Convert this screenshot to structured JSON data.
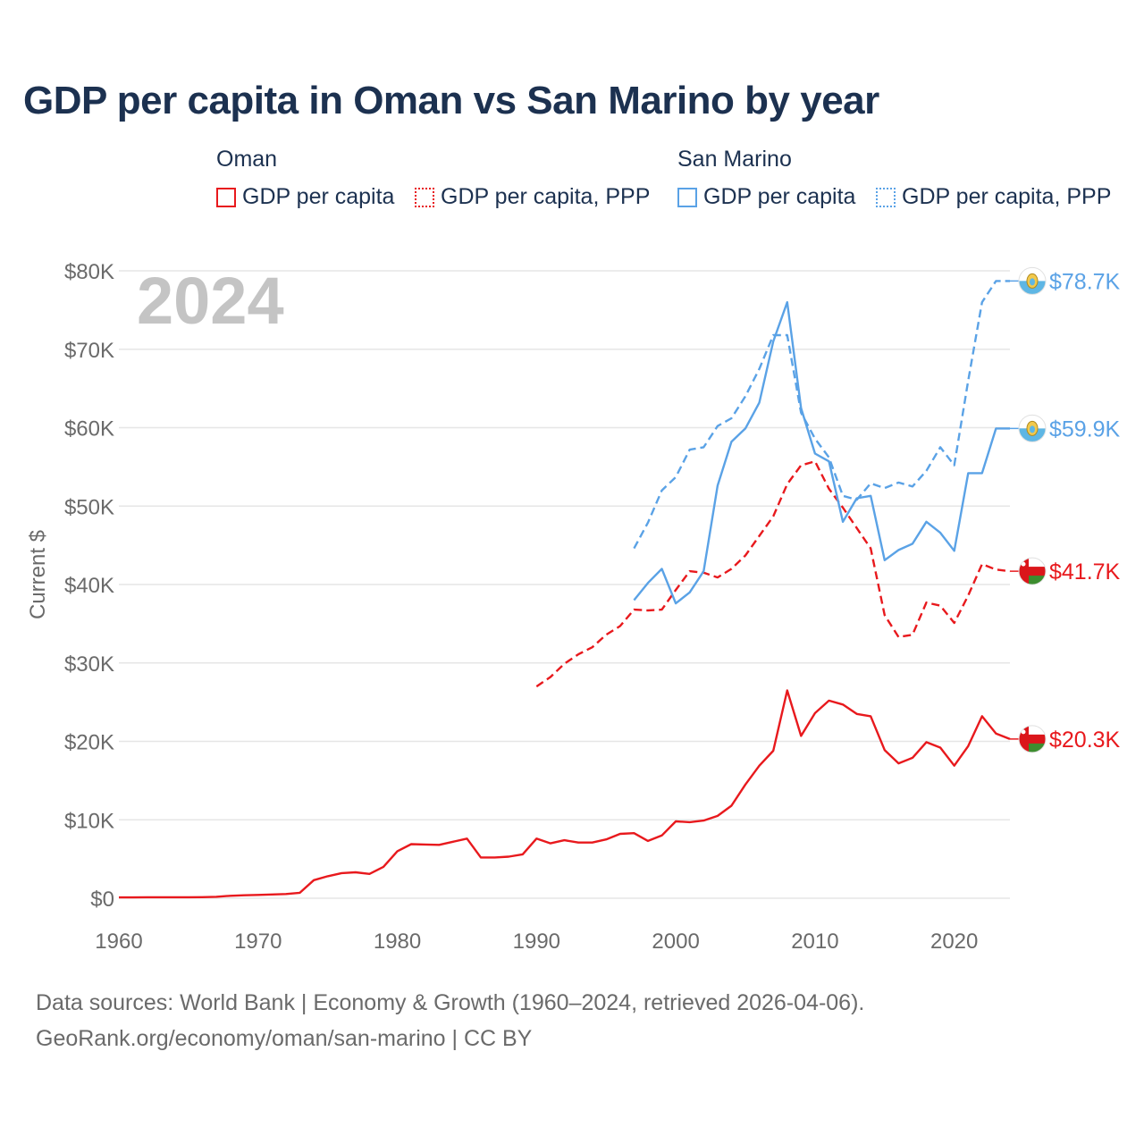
{
  "title": "GDP per capita in Oman vs San Marino by year",
  "legend": {
    "groups": [
      {
        "name": "Oman",
        "items": [
          {
            "label": "GDP per capita",
            "style": "solid",
            "color": "#e8191d"
          },
          {
            "label": "GDP per capita, PPP",
            "style": "dotted",
            "color": "#e8191d"
          }
        ]
      },
      {
        "name": "San Marino",
        "items": [
          {
            "label": "GDP per capita",
            "style": "solid",
            "color": "#5aa2e6"
          },
          {
            "label": "GDP per capita, PPP",
            "style": "dotted",
            "color": "#5aa2e6"
          }
        ]
      }
    ]
  },
  "year_watermark": "2024",
  "footer": {
    "line1": "Data sources: World Bank | Economy & Growth (1960–2024, retrieved 2026-04-06).",
    "line2": "GeoRank.org/economy/oman/san-marino | CC BY"
  },
  "chart_data": {
    "type": "line",
    "title": "GDP per capita in Oman vs San Marino by year",
    "ylabel": "Current $",
    "xlabel": "",
    "xlim": [
      1960,
      2024
    ],
    "ylim": [
      0,
      80000
    ],
    "x_ticks": [
      1960,
      1970,
      1980,
      1990,
      2000,
      2010,
      2020
    ],
    "x_tick_labels": [
      "1960",
      "1970",
      "1980",
      "1990",
      "2000",
      "2010",
      "2020"
    ],
    "y_ticks": [
      0,
      10000,
      20000,
      30000,
      40000,
      50000,
      60000,
      70000,
      80000
    ],
    "y_tick_labels": [
      "$0",
      "$10K",
      "$20K",
      "$30K",
      "$40K",
      "$50K",
      "$60K",
      "$70K",
      "$80K"
    ],
    "grid": true,
    "series": [
      {
        "name": "Oman GDP per capita",
        "country": "Oman",
        "color": "#e8191d",
        "dash": "solid",
        "end_label": "$20.3K",
        "end_value": 20300,
        "flag": "oman-flag",
        "x": [
          1960,
          1961,
          1962,
          1963,
          1964,
          1965,
          1966,
          1967,
          1968,
          1969,
          1970,
          1971,
          1972,
          1973,
          1974,
          1975,
          1976,
          1977,
          1978,
          1979,
          1980,
          1981,
          1982,
          1983,
          1984,
          1985,
          1986,
          1987,
          1988,
          1989,
          1990,
          1991,
          1992,
          1993,
          1994,
          1995,
          1996,
          1997,
          1998,
          1999,
          2000,
          2001,
          2002,
          2003,
          2004,
          2005,
          2006,
          2007,
          2008,
          2009,
          2010,
          2011,
          2012,
          2013,
          2014,
          2015,
          2016,
          2017,
          2018,
          2019,
          2020,
          2021,
          2022,
          2023,
          2024
        ],
        "values": [
          100,
          100,
          120,
          120,
          130,
          130,
          140,
          180,
          310,
          380,
          420,
          480,
          540,
          700,
          2300,
          2800,
          3200,
          3300,
          3100,
          4000,
          6000,
          6900,
          6850,
          6800,
          7200,
          7600,
          5200,
          5200,
          5300,
          5600,
          7600,
          7000,
          7400,
          7100,
          7100,
          7500,
          8200,
          8300,
          7300,
          8000,
          9800,
          9700,
          9900,
          10500,
          11800,
          14500,
          16900,
          18800,
          26500,
          20700,
          23600,
          25200,
          24700,
          23500,
          23200,
          18900,
          17200,
          17900,
          19900,
          19200,
          16900,
          19400,
          23200,
          21000,
          20300
        ]
      },
      {
        "name": "Oman GDP per capita, PPP",
        "country": "Oman",
        "color": "#e8191d",
        "dash": "dashed",
        "end_label": "$41.7K",
        "end_value": 41700,
        "flag": "oman-flag",
        "x": [
          1990,
          1991,
          1992,
          1993,
          1994,
          1995,
          1996,
          1997,
          1998,
          1999,
          2000,
          2001,
          2002,
          2003,
          2004,
          2005,
          2006,
          2007,
          2008,
          2009,
          2010,
          2011,
          2012,
          2013,
          2014,
          2015,
          2016,
          2017,
          2018,
          2019,
          2020,
          2021,
          2022,
          2023,
          2024
        ],
        "values": [
          27000,
          28200,
          29900,
          31100,
          32000,
          33600,
          34700,
          36800,
          36700,
          36800,
          39300,
          41700,
          41500,
          40900,
          42000,
          43700,
          46200,
          48700,
          52800,
          55200,
          55700,
          52200,
          49800,
          47200,
          44600,
          36100,
          33300,
          33600,
          37700,
          37300,
          35100,
          38600,
          42600,
          41900,
          41700
        ]
      },
      {
        "name": "San Marino GDP per capita",
        "country": "San Marino",
        "color": "#5aa2e6",
        "dash": "solid",
        "end_label": "$59.9K",
        "end_value": 59900,
        "flag": "san-marino-flag",
        "x": [
          1997,
          1998,
          1999,
          2000,
          2001,
          2002,
          2003,
          2004,
          2005,
          2006,
          2007,
          2008,
          2009,
          2010,
          2011,
          2012,
          2013,
          2014,
          2015,
          2016,
          2017,
          2018,
          2019,
          2020,
          2021,
          2022,
          2023,
          2024
        ],
        "values": [
          38000,
          40200,
          42000,
          37600,
          39000,
          41700,
          52600,
          58200,
          59900,
          63200,
          71000,
          76000,
          62500,
          56700,
          55700,
          48000,
          51000,
          51300,
          43100,
          44400,
          45200,
          48000,
          46600,
          44300,
          54200,
          54200,
          59900,
          59900
        ]
      },
      {
        "name": "San Marino GDP per capita, PPP",
        "country": "San Marino",
        "color": "#5aa2e6",
        "dash": "dashed",
        "end_label": "$78.7K",
        "end_value": 78700,
        "flag": "san-marino-flag",
        "x": [
          1997,
          1998,
          1999,
          2000,
          2001,
          2002,
          2003,
          2004,
          2005,
          2006,
          2007,
          2008,
          2009,
          2010,
          2011,
          2012,
          2013,
          2014,
          2015,
          2016,
          2017,
          2018,
          2019,
          2020,
          2021,
          2022,
          2023,
          2024
        ],
        "values": [
          44600,
          47900,
          52000,
          53700,
          57200,
          57500,
          60200,
          61200,
          64000,
          67500,
          71800,
          71800,
          61900,
          58600,
          56200,
          51300,
          50800,
          52900,
          52300,
          53000,
          52500,
          54500,
          57500,
          55200,
          66000,
          76000,
          78700,
          78700
        ]
      }
    ]
  }
}
